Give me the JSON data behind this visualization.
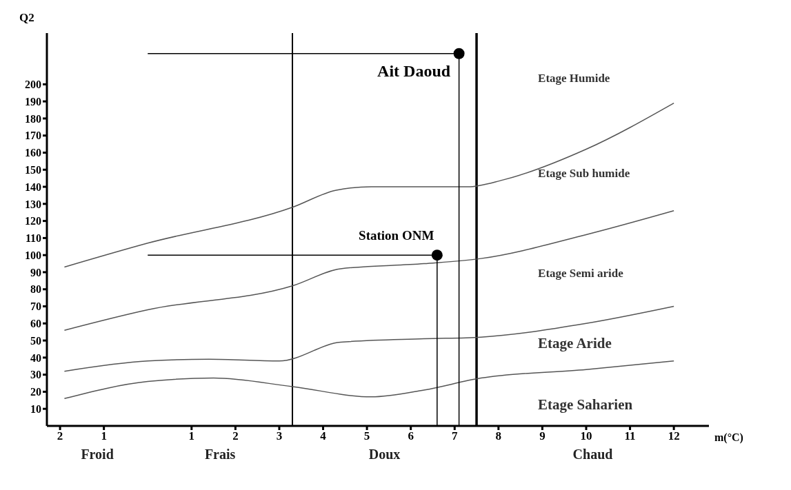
{
  "chart_data": {
    "type": "line",
    "xlabel": "m(°C)",
    "ylabel": "Q2",
    "xlim": [
      -2.3,
      12.8
    ],
    "ylim": [
      0,
      230
    ],
    "xticks": [
      {
        "value": -2,
        "label": "2"
      },
      {
        "value": -1,
        "label": "1"
      },
      1,
      2,
      3,
      4,
      5,
      6,
      7,
      8,
      9,
      10,
      11,
      12
    ],
    "yticks": [
      10,
      20,
      30,
      40,
      50,
      60,
      70,
      80,
      90,
      100,
      110,
      120,
      130,
      140,
      150,
      160,
      170,
      180,
      190,
      200
    ],
    "series": [
      {
        "color": "#555555",
        "x": [
          -1.9,
          0,
          3.3,
          4.3,
          5.1,
          7.3,
          8.1,
          10,
          12
        ],
        "values": [
          93,
          107,
          128,
          138,
          140,
          140,
          144,
          162,
          189
        ]
      },
      {
        "color": "#555555",
        "x": [
          -1.9,
          0,
          3.3,
          4.4,
          6.3,
          7.6,
          10,
          12
        ],
        "values": [
          56,
          68,
          82,
          92,
          95,
          98,
          112,
          126
        ]
      },
      {
        "color": "#555555",
        "x": [
          -1.9,
          0,
          1.4,
          3,
          4.4,
          6.3,
          7.6,
          10,
          12
        ],
        "values": [
          32,
          38,
          39,
          38,
          49,
          51,
          52,
          60,
          70
        ]
      },
      {
        "color": "#555555",
        "x": [
          -1.9,
          0,
          1.5,
          3.3,
          5.1,
          6.3,
          7.6,
          10,
          12
        ],
        "values": [
          16,
          26,
          28,
          23,
          17,
          21,
          28,
          33,
          38
        ]
      },
      {
        "type": "scatter",
        "name": "Ait Daoud",
        "color": "#000000",
        "x": [
          7.1
        ],
        "values": [
          218
        ]
      },
      {
        "type": "scatter",
        "name": "Station ONM",
        "color": "#000000",
        "x": [
          6.6
        ],
        "values": [
          100
        ]
      },
      {
        "color": "#000000",
        "x": [
          0,
          7.1,
          7.1
        ],
        "values": [
          218,
          218,
          0
        ]
      },
      {
        "color": "#000000",
        "x": [
          0,
          6.6,
          6.6
        ],
        "values": [
          100,
          100,
          0
        ]
      }
    ],
    "ref_lines": [
      {
        "axis": "x",
        "value": 3.3,
        "color": "#000000"
      },
      {
        "axis": "x",
        "value": 7.5,
        "color": "#000000"
      }
    ],
    "annotations": [
      "Etage Humide",
      "Etage Sub humide",
      "Etage Semi aride",
      "Etage Aride",
      "Etage Saharien",
      "Froid",
      "Frais",
      "Doux",
      "Chaud"
    ],
    "grid": false,
    "legend": false
  }
}
